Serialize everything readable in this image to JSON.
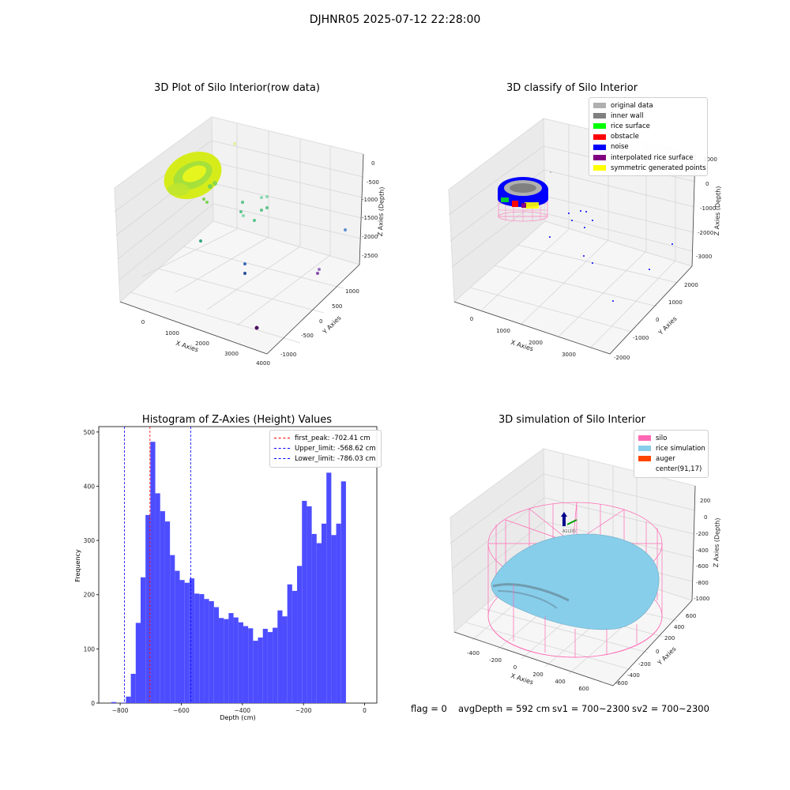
{
  "page_title": "DJHNR05 2025-07-12 22:28:00",
  "panel1": {
    "title": "3D Plot of Silo Interior(row data)",
    "x_ticks": [
      "0",
      "1000",
      "2000",
      "3000",
      "4000"
    ],
    "y_ticks": [
      "-1000",
      "-500",
      "0",
      "500",
      "1000"
    ],
    "z_ticks": [
      "0",
      "-500",
      "-1000",
      "-1500",
      "-2000",
      "-2500"
    ],
    "x_label": "X Axies",
    "y_label": "Y Axies",
    "z_label": "Z Axies (Depth)"
  },
  "panel2": {
    "title": "3D classify of Silo Interior",
    "x_ticks": [
      "0",
      "1000",
      "2000",
      "3000"
    ],
    "y_ticks": [
      "-2000",
      "-1000",
      "0",
      "1000",
      "2000"
    ],
    "z_ticks": [
      "1000",
      "0",
      "-1000",
      "-2000",
      "-3000"
    ],
    "x_label": "X Axies",
    "y_label": "Y Axies",
    "z_label": "Z Axies (Depth)",
    "legend": [
      {
        "label": "original data",
        "color": "#b0b0b0"
      },
      {
        "label": "inner wall",
        "color": "#808080"
      },
      {
        "label": "rice surface",
        "color": "#00ff00"
      },
      {
        "label": "obstacle",
        "color": "#ff0000"
      },
      {
        "label": "noise",
        "color": "#0000ff"
      },
      {
        "label": "interpolated rice surface",
        "color": "#800080"
      },
      {
        "label": "symmetric generated points",
        "color": "#ffff00"
      }
    ]
  },
  "panel4": {
    "title": "3D simulation of Silo Interior",
    "x_ticks": [
      "-400",
      "-200",
      "0",
      "200",
      "400",
      "600"
    ],
    "y_ticks": [
      "-600",
      "-400",
      "-200",
      "0",
      "200",
      "400",
      "600"
    ],
    "z_ticks": [
      "200",
      "0",
      "-200",
      "-400",
      "-600",
      "-800",
      "-1000"
    ],
    "x_label": "X Axies",
    "y_label": "Y Axies",
    "z_label": "Z Axies (Depth)",
    "legend": [
      {
        "label": "silo",
        "color": "#ff69b4"
      },
      {
        "label": "rice simulation",
        "color": "#87ceeb"
      },
      {
        "label": "auger",
        "color": "#ff4500"
      },
      {
        "label": "center(91,17)",
        "color": ""
      }
    ]
  },
  "footer": {
    "flag": "flag = 0",
    "avg": "avgDepth = 592 cm",
    "sv1": "sv1 = 700~2300",
    "sv2": "sv2 = 700~2300"
  },
  "chart_data": [
    {
      "type": "bar",
      "title": "Histogram of Z-Axies (Height) Values",
      "xlabel": "Depth (cm)",
      "ylabel": "Frequency",
      "xlim": [
        -870,
        40
      ],
      "ylim": [
        0,
        510
      ],
      "x_ticks": [
        -800,
        -600,
        -400,
        -200,
        0
      ],
      "y_ticks": [
        0,
        100,
        200,
        300,
        400,
        500
      ],
      "bin_edges_start": -829,
      "bin_width": 16,
      "values": [
        2,
        0,
        1,
        12,
        54,
        148,
        232,
        347,
        482,
        387,
        354,
        335,
        273,
        244,
        227,
        222,
        230,
        202,
        201,
        192,
        188,
        177,
        157,
        155,
        166,
        158,
        149,
        142,
        138,
        115,
        121,
        137,
        131,
        139,
        171,
        160,
        219,
        207,
        253,
        373,
        363,
        312,
        295,
        331,
        425,
        310,
        331,
        409
      ],
      "bar_color": "#4d4dff",
      "vlines": [
        {
          "label": "first_peak: -702.41 cm",
          "x": -702.41,
          "color": "#ff0000"
        },
        {
          "label": "Upper_limit: -568.62 cm",
          "x": -568.62,
          "color": "#0000ff"
        },
        {
          "label": "Lower_limit: -786.03 cm",
          "x": -786.03,
          "color": "#0000ff"
        }
      ],
      "legend_position": "top-right"
    }
  ]
}
